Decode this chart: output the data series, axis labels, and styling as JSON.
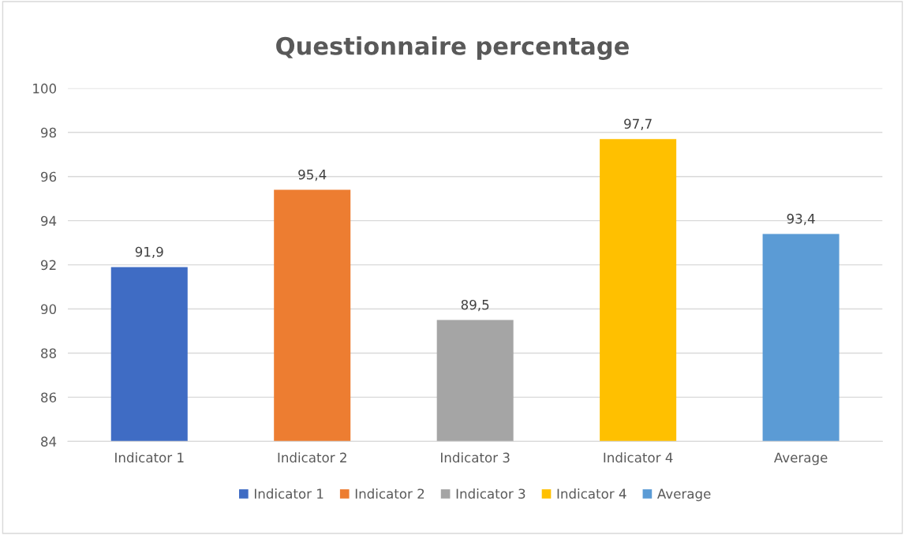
{
  "chart_data": {
    "type": "bar",
    "title": "Questionnaire percentage",
    "categories": [
      "Indicator 1",
      "Indicator 2",
      "Indicator 3",
      "Indicator 4",
      "Average"
    ],
    "series": [
      {
        "name": "Indicator 1",
        "color": "#3f6cc4",
        "values": [
          91.9,
          null,
          null,
          null,
          null
        ],
        "value_labels": [
          "91,9",
          null,
          null,
          null,
          null
        ]
      },
      {
        "name": "Indicator 2",
        "color": "#ed7d31",
        "values": [
          null,
          95.4,
          null,
          null,
          null
        ],
        "value_labels": [
          null,
          "95,4",
          null,
          null,
          null
        ]
      },
      {
        "name": "Indicator 3",
        "color": "#a5a5a5",
        "values": [
          null,
          null,
          89.5,
          null,
          null
        ],
        "value_labels": [
          null,
          null,
          "89,5",
          null,
          null
        ]
      },
      {
        "name": "Indicator 4",
        "color": "#ffc000",
        "values": [
          null,
          null,
          null,
          97.7,
          null
        ],
        "value_labels": [
          null,
          null,
          null,
          "97,7",
          null
        ]
      },
      {
        "name": "Average",
        "color": "#5b9bd5",
        "values": [
          null,
          null,
          null,
          null,
          93.4
        ],
        "value_labels": [
          null,
          null,
          null,
          null,
          "93,4"
        ]
      }
    ],
    "ylim": [
      84,
      100
    ],
    "yticks": [
      84,
      86,
      88,
      90,
      92,
      94,
      96,
      98,
      100
    ],
    "grid": "y",
    "legend": "bottom"
  }
}
